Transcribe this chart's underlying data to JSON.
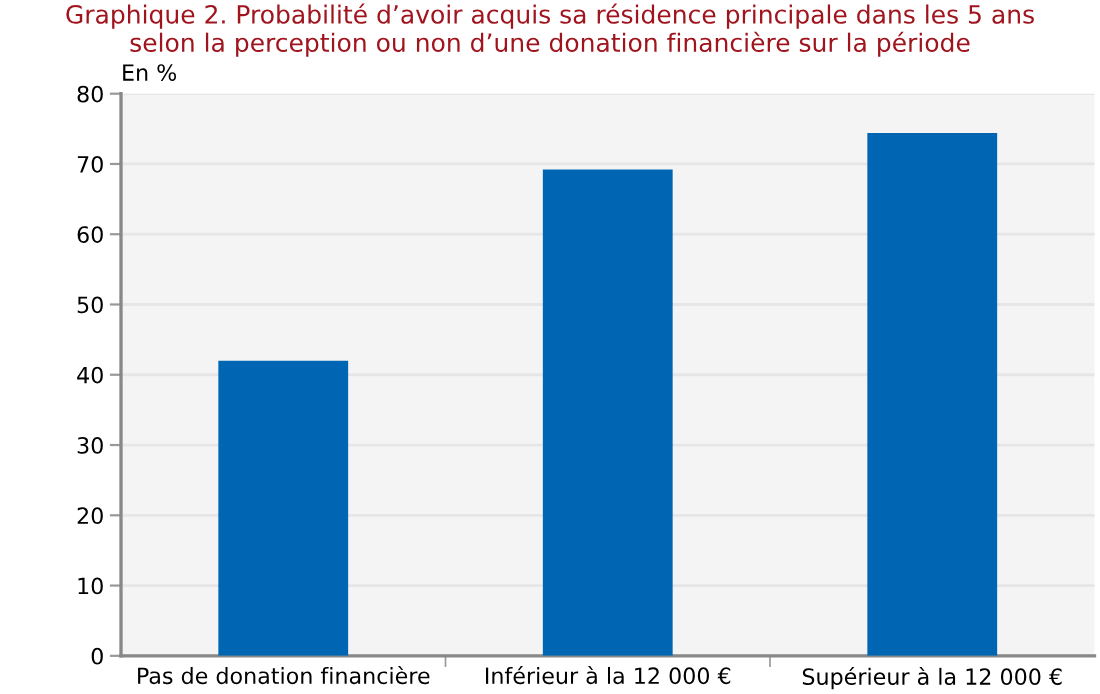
{
  "chart_data": {
    "type": "bar",
    "title": "Graphique 2. Probabilité d’avoir acquis sa résidence principale dans les 5 ans\nselon la perception ou non d’une donation financière sur la période",
    "ylabel": "En %",
    "categories": [
      "Pas de donation financière",
      "Inférieur à la 12 000 €",
      "Supérieur à la 12 000 €"
    ],
    "values": [
      42,
      69.2,
      74.4
    ],
    "color": "#0066b3",
    "ylim": [
      0,
      80
    ],
    "yticks": [
      0,
      10,
      20,
      30,
      40,
      50,
      60,
      70,
      80
    ],
    "grid": "y"
  }
}
